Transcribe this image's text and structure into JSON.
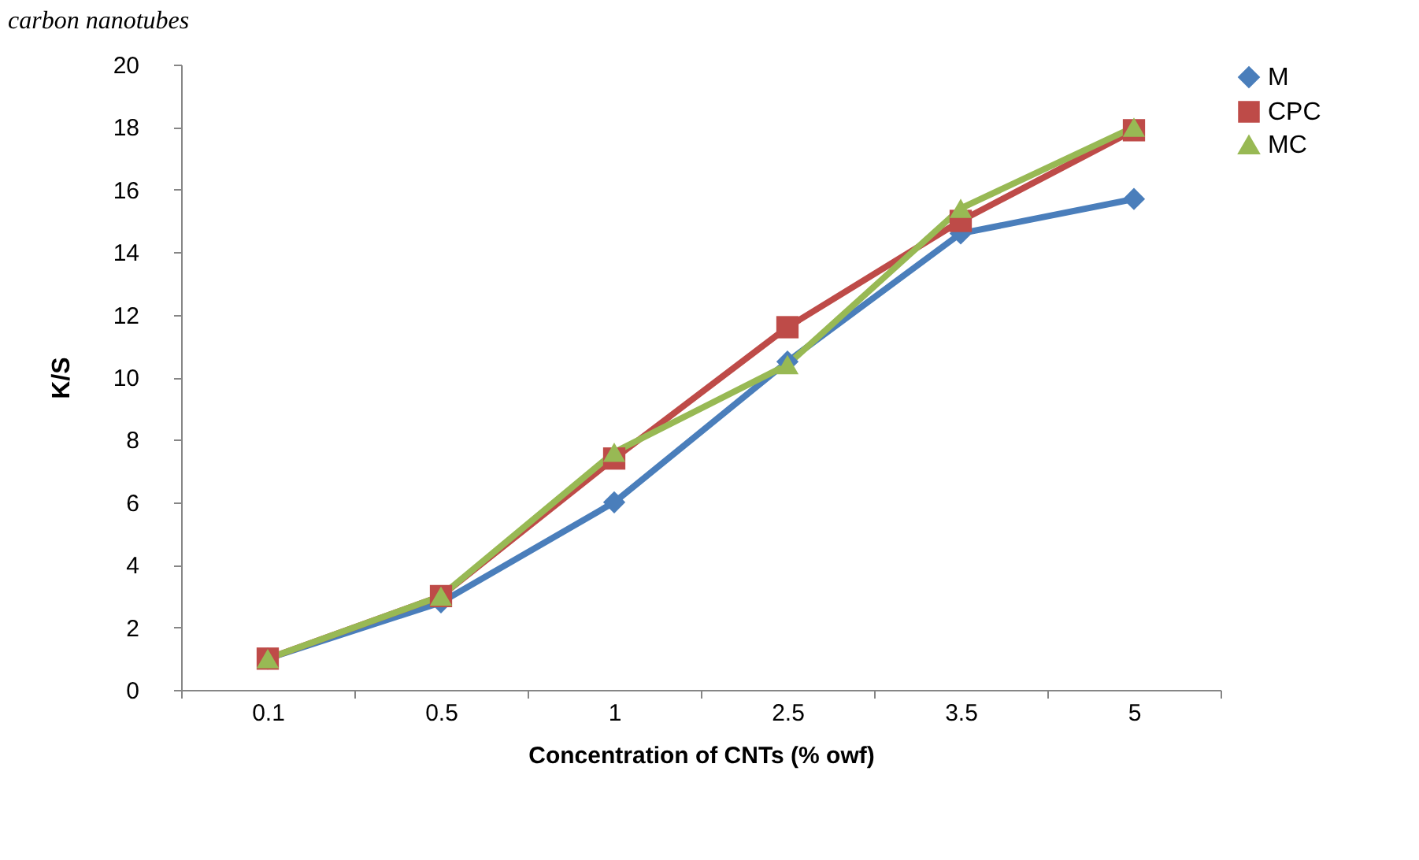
{
  "chart_data": {
    "type": "line",
    "xlabel": "Concentration of CNTs (% owf)",
    "ylabel": "K/S",
    "annotations": [
      "carbon nanotubes"
    ],
    "categories": [
      "0.1",
      "0.5",
      "1",
      "2.5",
      "3.5",
      "5"
    ],
    "ylim": [
      0,
      20
    ],
    "yticks": [
      0,
      2,
      4,
      6,
      8,
      10,
      12,
      14,
      16,
      18,
      20
    ],
    "grid": false,
    "legend": "right",
    "line_style": "solid",
    "series": [
      {
        "name": "M",
        "color": "#4a7ebb",
        "marker": "diamond",
        "values": [
          1.0,
          2.8,
          6.0,
          10.5,
          14.6,
          15.7
        ]
      },
      {
        "name": "CPC",
        "color": "#be4b48",
        "marker": "square",
        "values": [
          1.0,
          3.0,
          7.4,
          11.6,
          15.0,
          17.9
        ]
      },
      {
        "name": "MC",
        "color": "#98b954",
        "marker": "triangle",
        "values": [
          1.0,
          3.0,
          7.6,
          10.4,
          15.4,
          18.0
        ]
      }
    ]
  }
}
